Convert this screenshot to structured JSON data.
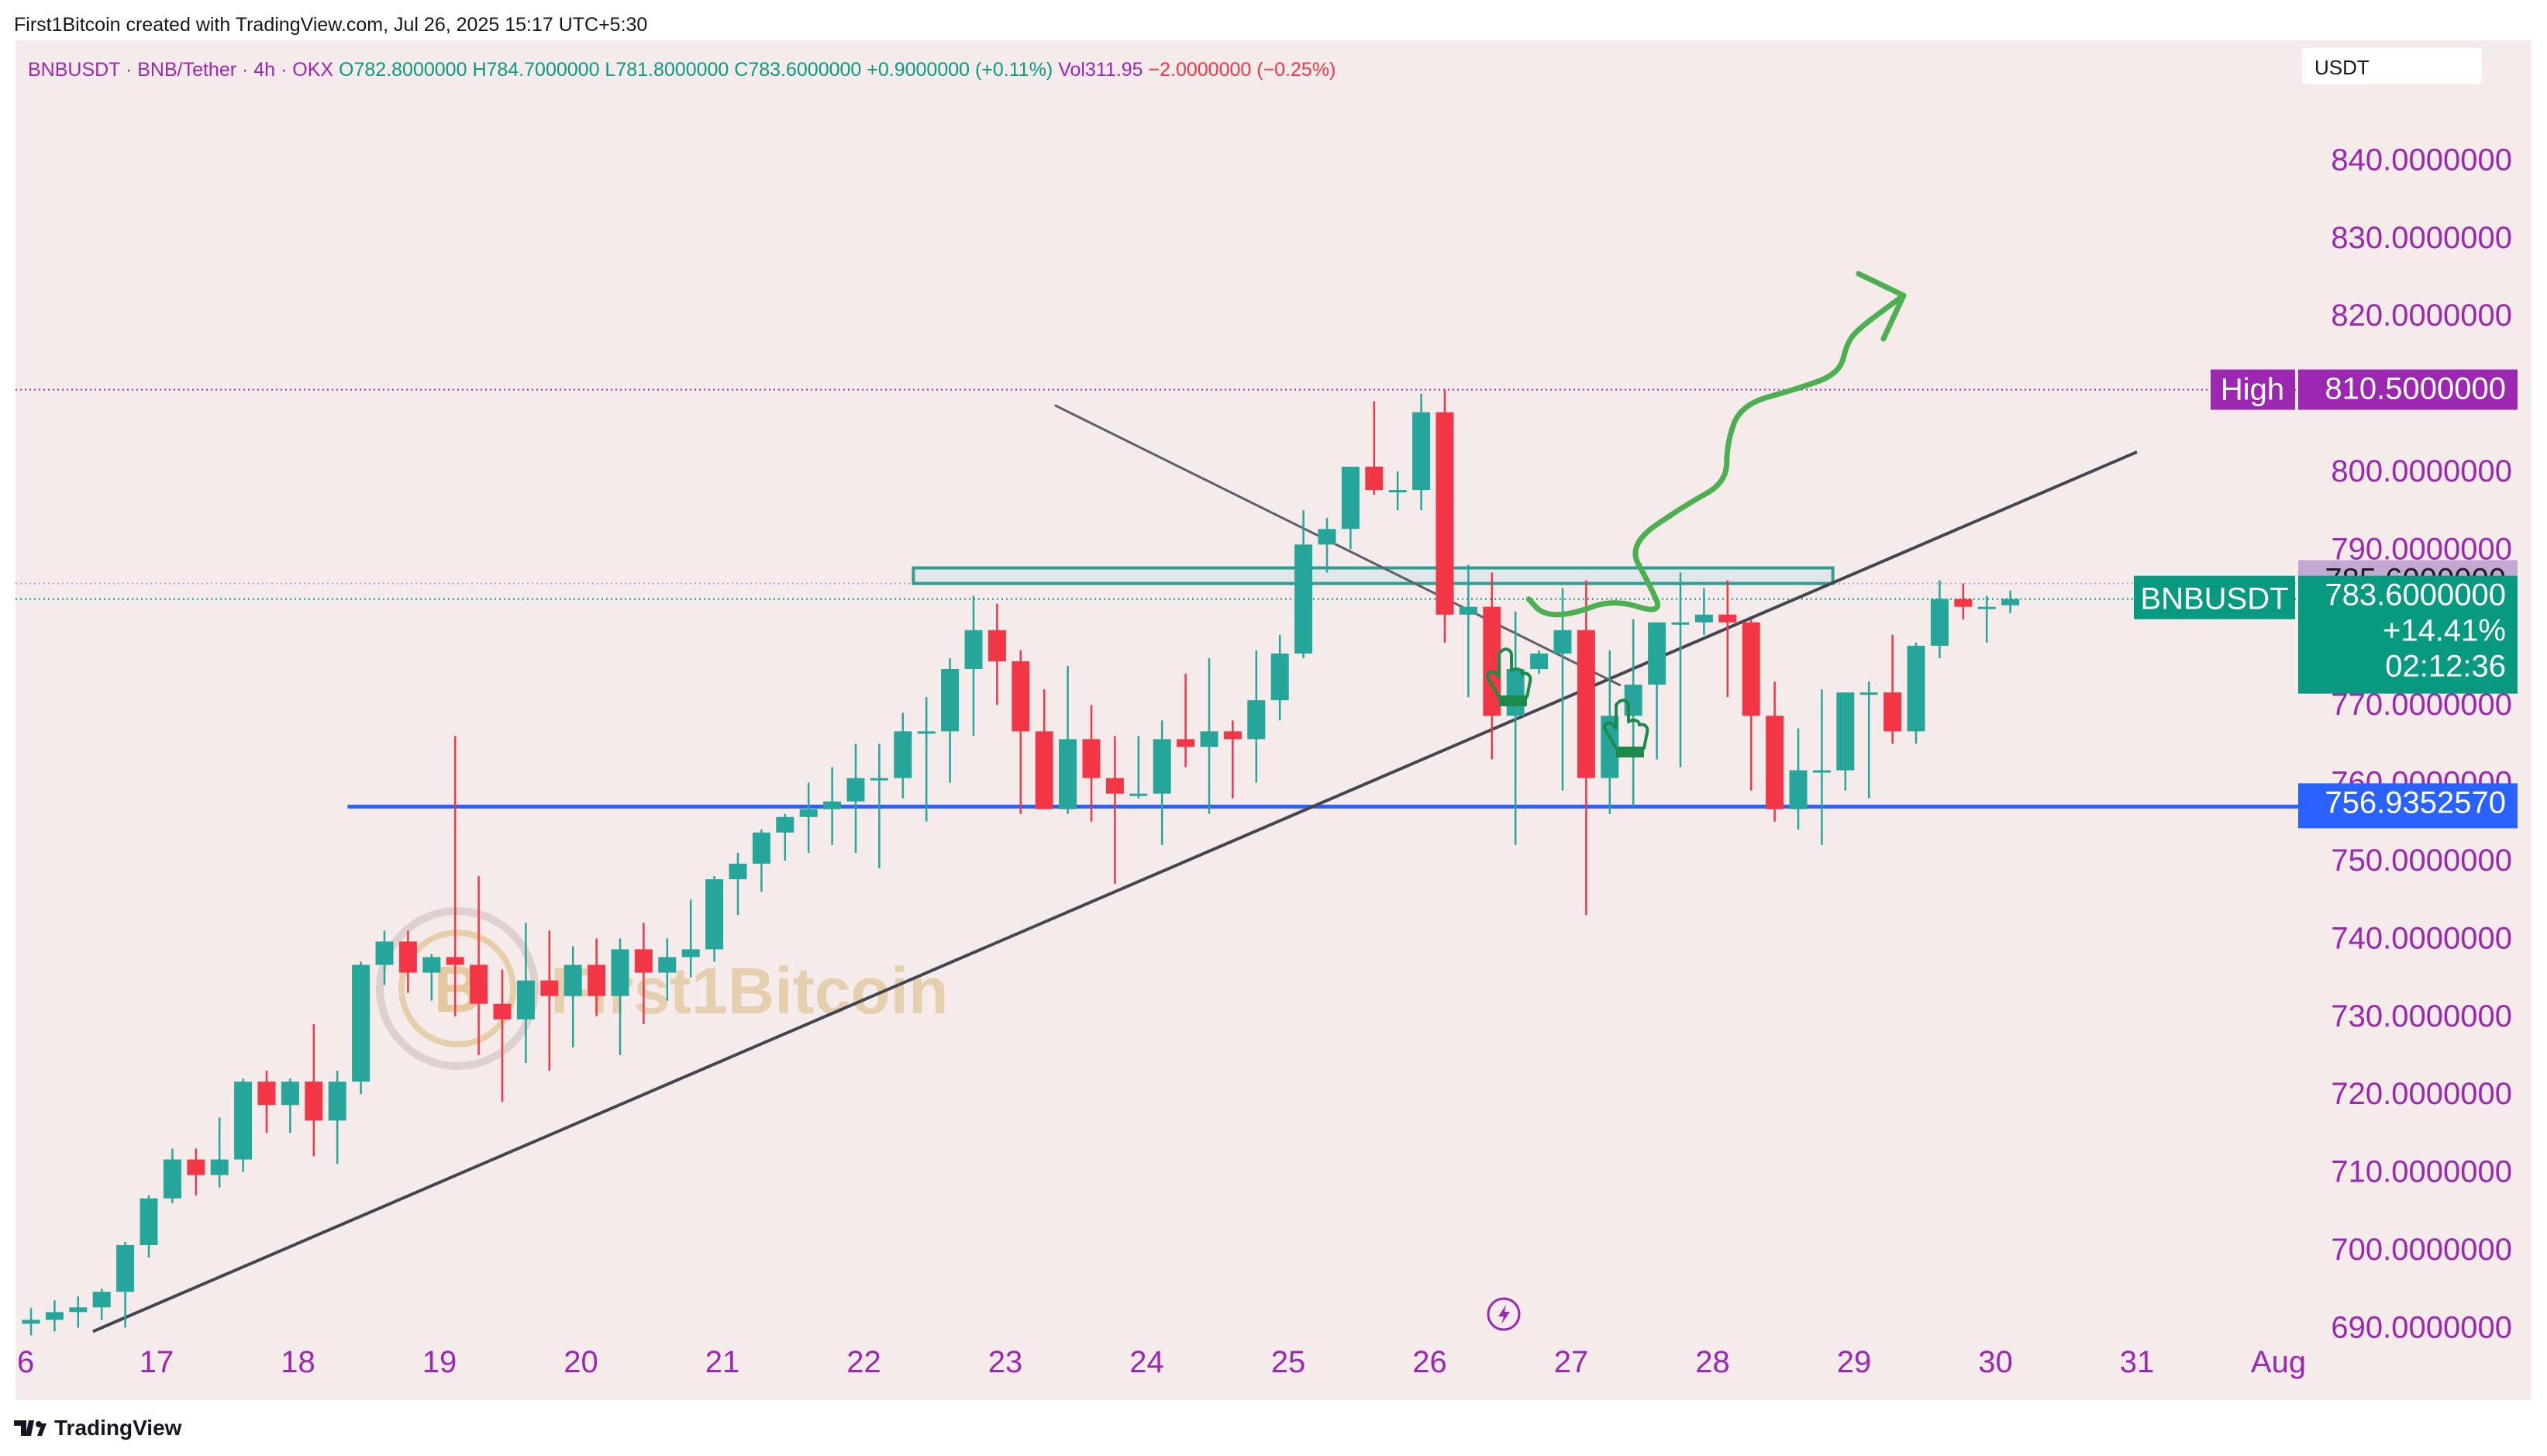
{
  "header": {
    "created_by": "First1Bitcoin created with TradingView.com, Jul 26, 2025 15:17 UTC+5:30"
  },
  "legend": {
    "symbol": "BNBUSDT · BNB/Tether · 4h · OKX",
    "open": "O782.8000000",
    "high": "H784.7000000",
    "low": "L781.8000000",
    "close": "C783.6000000",
    "change": "+0.9000000 (+0.11%)",
    "volume": "Vol311.95",
    "vol_change": "−2.0000000 (−0.25%)"
  },
  "currency_label": "USDT",
  "footer": {
    "brand": "TradingView"
  },
  "watermark": "First1Bitcoin",
  "colors": {
    "background": "#f5ebeb",
    "up": "#26a69a",
    "down": "#f23645",
    "axis_text": "#9c27b0",
    "support": "#2962ff",
    "high_tag": "#9c27b0",
    "last_tag": "#089981",
    "zone": "#2e9e93",
    "arrow": "#4caf50"
  },
  "chart_data": {
    "type": "candlestick",
    "interval": "4h",
    "x_axis": {
      "tick_labels": [
        "6",
        "17",
        "18",
        "19",
        "20",
        "21",
        "22",
        "23",
        "24",
        "25",
        "26",
        "27",
        "28",
        "29",
        "30",
        "31",
        "Aug"
      ]
    },
    "y_axis": {
      "range": [
        690,
        845
      ],
      "tick_labels": [
        "840.0000000",
        "830.0000000",
        "820.0000000",
        "810.0000000",
        "800.0000000",
        "790.0000000",
        "780.0000000",
        "770.0000000",
        "760.0000000",
        "750.0000000",
        "740.0000000",
        "730.0000000",
        "720.0000000",
        "710.0000000",
        "700.0000000",
        "690.0000000"
      ],
      "tick_values": [
        840,
        830,
        820,
        810,
        800,
        790,
        780,
        770,
        760,
        750,
        740,
        730,
        720,
        710,
        700,
        690
      ]
    },
    "price_tags": {
      "high": {
        "label": "High",
        "value": 810.5,
        "text": "810.5000000"
      },
      "prev_close": {
        "value": 785.6,
        "text": "785.6000000"
      },
      "last": {
        "label": "BNBUSDT",
        "value": 783.6,
        "text": "783.6000000",
        "change": "+14.41%",
        "countdown": "02:12:36"
      },
      "support": {
        "value": 756.935257,
        "text": "756.9352570"
      }
    },
    "candles_ohlc": [
      [
        690.5,
        692.5,
        689,
        691
      ],
      [
        691,
        693.5,
        689.5,
        692
      ],
      [
        692,
        694,
        690,
        692.6
      ],
      [
        692.6,
        695,
        691,
        694.6
      ],
      [
        694.6,
        701,
        690,
        700.6
      ],
      [
        700.6,
        707,
        699,
        706.6
      ],
      [
        706.6,
        713,
        706,
        711.6
      ],
      [
        711.6,
        713,
        707,
        709.6
      ],
      [
        709.6,
        717,
        708,
        711.6
      ],
      [
        711.6,
        722,
        710,
        721.6
      ],
      [
        721.6,
        723,
        715,
        718.6
      ],
      [
        718.6,
        722,
        715,
        721.6
      ],
      [
        721.6,
        729,
        712,
        716.6
      ],
      [
        716.6,
        723,
        711,
        721.6
      ],
      [
        721.6,
        737,
        720,
        736.6
      ],
      [
        736.6,
        741,
        734,
        739.6
      ],
      [
        739.6,
        741,
        733,
        735.6
      ],
      [
        735.6,
        738,
        732,
        737.6
      ],
      [
        737.6,
        766,
        730,
        736.6
      ],
      [
        736.6,
        748,
        725,
        731.6
      ],
      [
        731.6,
        736,
        719,
        729.6
      ],
      [
        729.6,
        742,
        724,
        734.6
      ],
      [
        734.6,
        741,
        723,
        732.6
      ],
      [
        732.6,
        739,
        726,
        736.6
      ],
      [
        736.6,
        740,
        730,
        732.6
      ],
      [
        732.6,
        740,
        725,
        738.6
      ],
      [
        738.6,
        742,
        729,
        735.6
      ],
      [
        735.6,
        740,
        732,
        737.6
      ],
      [
        737.6,
        745,
        735,
        738.6
      ],
      [
        738.6,
        748,
        737,
        747.6
      ],
      [
        747.6,
        751,
        743,
        749.6
      ],
      [
        749.6,
        754,
        746,
        753.6
      ],
      [
        753.6,
        756,
        750,
        755.6
      ],
      [
        755.6,
        760,
        751,
        756.6
      ],
      [
        756.6,
        762,
        752,
        757.6
      ],
      [
        757.6,
        765,
        751,
        760.6
      ],
      [
        760.6,
        765,
        749,
        760.6
      ],
      [
        760.6,
        769,
        758,
        766.6
      ],
      [
        766.6,
        771,
        755,
        766.6
      ],
      [
        766.6,
        776,
        760,
        774.6
      ],
      [
        774.6,
        784,
        766,
        779.6
      ],
      [
        779.6,
        783,
        770,
        775.6
      ],
      [
        775.6,
        777,
        756,
        766.6
      ],
      [
        766.6,
        772,
        757,
        756.6
      ],
      [
        756.6,
        775,
        756,
        765.6
      ],
      [
        765.6,
        770,
        755,
        760.6
      ],
      [
        760.6,
        766,
        747,
        758.6
      ],
      [
        758.6,
        766,
        758,
        758.6
      ],
      [
        758.6,
        768,
        752,
        765.6
      ],
      [
        765.6,
        774,
        762,
        764.6
      ],
      [
        764.6,
        776,
        756,
        766.6
      ],
      [
        766.6,
        768,
        758,
        765.6
      ],
      [
        765.6,
        777,
        760,
        770.6
      ],
      [
        770.6,
        779,
        768,
        776.6
      ],
      [
        776.6,
        795,
        776,
        790.6
      ],
      [
        790.6,
        794,
        787,
        792.6
      ],
      [
        792.6,
        799,
        790,
        800.6
      ],
      [
        800.6,
        809,
        797,
        797.6
      ],
      [
        797.6,
        800,
        795,
        797.6
      ],
      [
        797.6,
        810,
        795,
        807.6
      ],
      [
        807.6,
        810.5,
        778,
        781.6
      ],
      [
        781.6,
        788,
        771,
        782.6
      ],
      [
        782.6,
        787,
        763,
        768.6
      ],
      [
        768.6,
        782,
        752,
        774.6
      ],
      [
        774.6,
        777,
        774,
        776.6
      ],
      [
        776.6,
        785,
        759,
        779.6
      ],
      [
        779.6,
        786,
        743,
        760.6
      ],
      [
        760.6,
        777,
        756,
        768.6
      ],
      [
        768.6,
        781,
        757,
        772.6
      ],
      [
        772.6,
        778,
        763,
        780.6
      ],
      [
        780.6,
        787,
        762,
        780.6
      ],
      [
        780.6,
        785,
        779,
        781.6
      ],
      [
        781.6,
        786,
        771,
        780.6
      ],
      [
        780.6,
        781,
        759,
        768.6
      ],
      [
        768.6,
        773,
        755,
        756.6
      ],
      [
        756.6,
        767,
        754,
        761.6
      ],
      [
        761.6,
        772,
        752,
        761.6
      ],
      [
        761.6,
        770,
        759,
        771.6
      ],
      [
        771.6,
        773,
        758,
        771.6
      ],
      [
        771.6,
        779,
        765,
        766.6
      ],
      [
        766.6,
        778,
        765,
        777.6
      ],
      [
        777.6,
        786,
        776,
        783.6
      ],
      [
        783.6,
        785.6,
        781,
        782.6
      ],
      [
        782.6,
        784,
        778,
        782.6
      ],
      [
        782.8,
        784.7,
        781.8,
        783.6
      ]
    ],
    "drawings": {
      "support_line": {
        "start_day": 18.35,
        "end_day": 28.8,
        "value": 756.935257
      },
      "resistance_zone": {
        "start_day": 22.35,
        "end_day": 28.85,
        "top": 787.6,
        "bottom": 785.6
      },
      "descending_line": {
        "start": [
          23.35,
          808.5
        ],
        "end": [
          27.35,
          772.5
        ]
      },
      "ascending_trendline": {
        "start": [
          16.55,
          689.5
        ],
        "end": [
          31,
          802.5
        ]
      },
      "projected_path": [
        [
          26.7,
          783.6
        ],
        [
          26.8,
          781.6
        ],
        [
          27,
          781.6
        ],
        [
          27.3,
          783.6
        ],
        [
          27.65,
          781.6
        ],
        [
          27.55,
          785.6
        ],
        [
          27.4,
          790.6
        ],
        [
          27.8,
          795.6
        ],
        [
          28.1,
          798.6
        ],
        [
          28.1,
          803.6
        ],
        [
          28.2,
          808.6
        ],
        [
          28.6,
          810.6
        ],
        [
          28.9,
          812.6
        ],
        [
          28.95,
          816.6
        ],
        [
          29.05,
          818.6
        ],
        [
          29.35,
          822.6
        ]
      ]
    }
  }
}
